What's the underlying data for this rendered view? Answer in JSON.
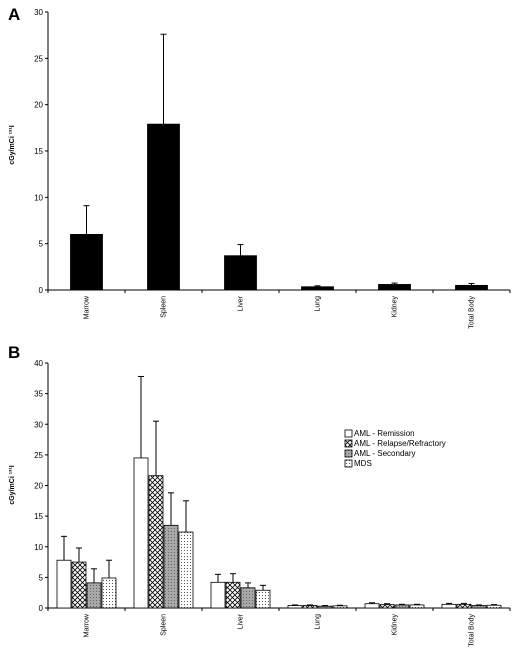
{
  "chart_data": [
    {
      "panel": "A",
      "type": "bar",
      "ylabel": "cGy/mCi ¹³¹I",
      "ylim": [
        0,
        30
      ],
      "yticks": [
        0,
        5,
        10,
        15,
        20,
        25,
        30
      ],
      "categories": [
        "Marrow",
        "Spleen",
        "Liver",
        "Lung",
        "Kidney",
        "Total Body"
      ],
      "series": [
        {
          "values": [
            6.0,
            17.9,
            3.7,
            0.35,
            0.6,
            0.5
          ],
          "errors": [
            3.1,
            9.7,
            1.2,
            0.1,
            0.15,
            0.2
          ]
        }
      ],
      "colors": [
        "#000000"
      ]
    },
    {
      "panel": "B",
      "type": "bar",
      "ylabel": "cGy/mCi ¹³¹I",
      "ylim": [
        0,
        40
      ],
      "yticks": [
        0,
        5,
        10,
        15,
        20,
        25,
        30,
        35,
        40
      ],
      "categories": [
        "Marrow",
        "Spleen",
        "Liver",
        "Lung",
        "Kidney",
        "Total Body"
      ],
      "legend_position": "right",
      "series": [
        {
          "name": "AML - Remission",
          "pattern": "white",
          "values": [
            7.8,
            24.5,
            4.2,
            0.4,
            0.7,
            0.6
          ],
          "errors": [
            3.9,
            13.3,
            1.3,
            0.1,
            0.15,
            0.15
          ]
        },
        {
          "name": "AML - Relapse/Refractory",
          "pattern": "crosshatch",
          "values": [
            7.5,
            21.6,
            4.2,
            0.4,
            0.55,
            0.6
          ],
          "errors": [
            2.3,
            8.9,
            1.4,
            0.1,
            0.15,
            0.15
          ]
        },
        {
          "name": "AML - Secondary",
          "pattern": "gray",
          "values": [
            4.1,
            13.5,
            3.3,
            0.3,
            0.5,
            0.4
          ],
          "errors": [
            2.3,
            5.3,
            0.8,
            0.1,
            0.1,
            0.1
          ]
        },
        {
          "name": "MDS",
          "pattern": "dots",
          "values": [
            4.9,
            12.4,
            2.9,
            0.35,
            0.5,
            0.45
          ],
          "errors": [
            2.9,
            5.1,
            0.8,
            0.1,
            0.1,
            0.1
          ]
        }
      ]
    }
  ]
}
